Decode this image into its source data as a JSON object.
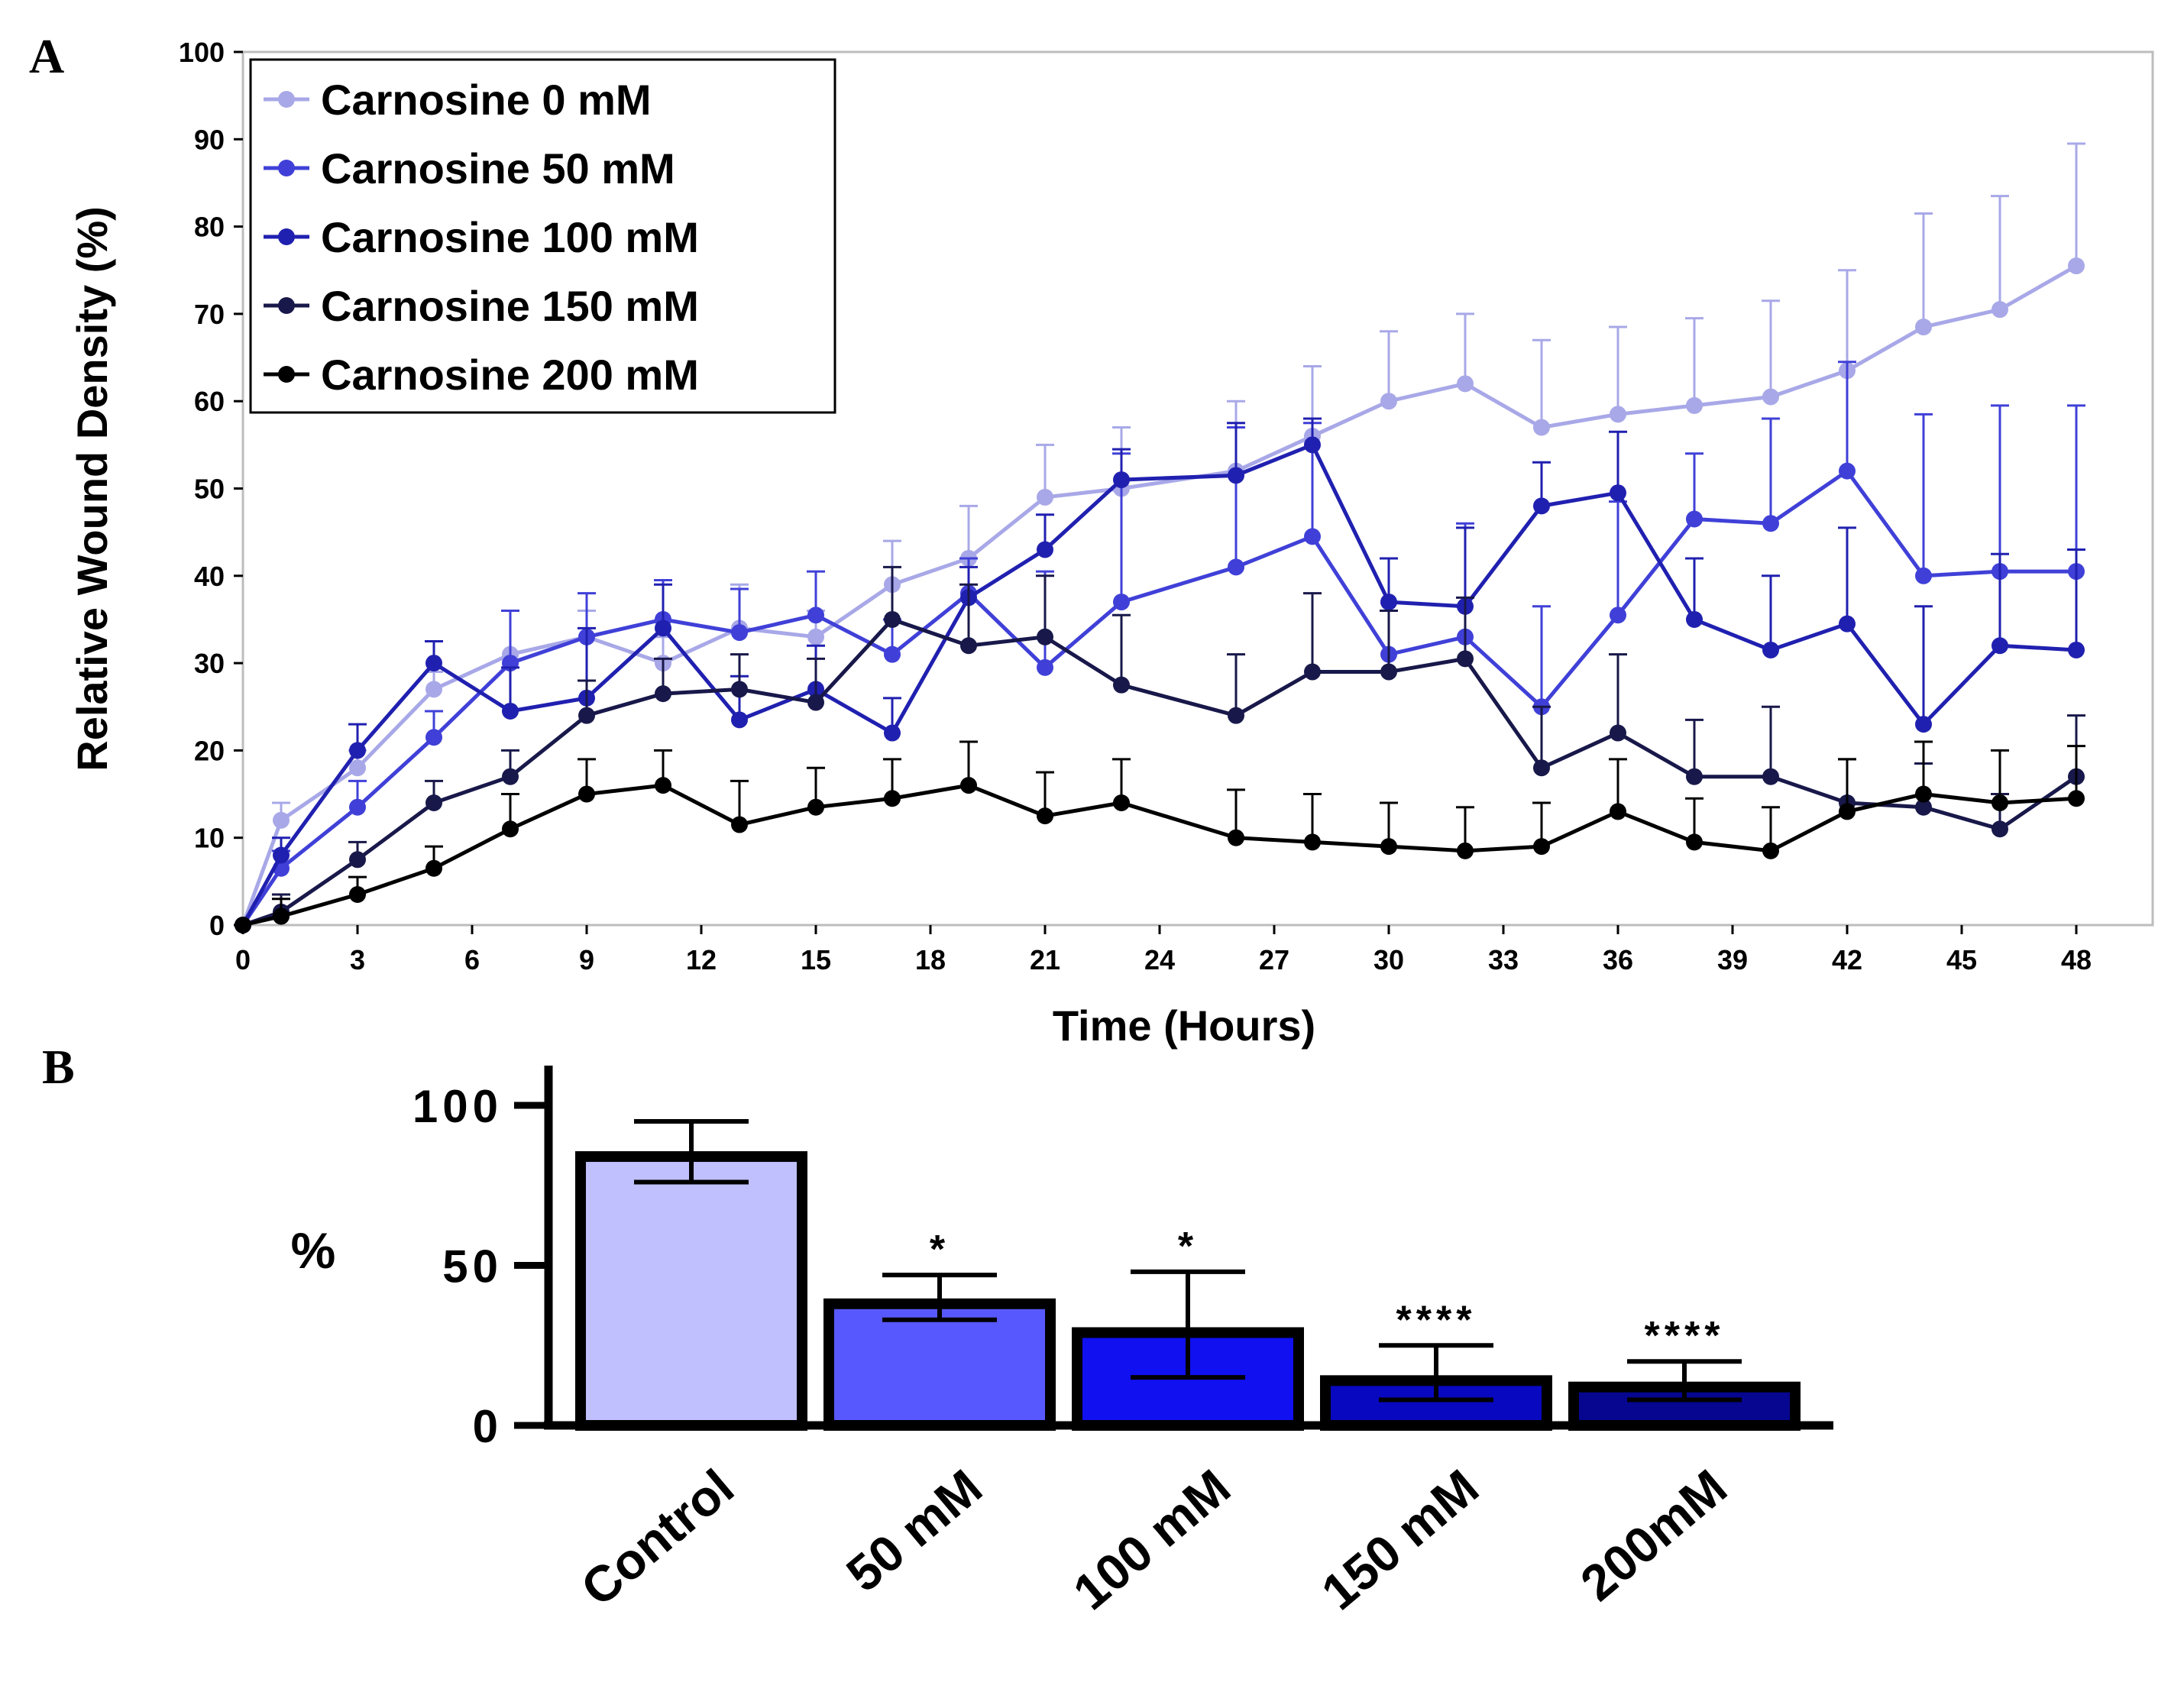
{
  "panel_a_label": "A",
  "panel_b_label": "B",
  "chart_data": [
    {
      "type": "line",
      "xlabel": "Time (Hours)",
      "ylabel": "Relative Wound Density (%)",
      "xlim": [
        0,
        50
      ],
      "ylim": [
        0,
        100
      ],
      "x_ticks": [
        "0",
        "3",
        "6",
        "9",
        "12",
        "15",
        "18",
        "21",
        "24",
        "27",
        "30",
        "33",
        "36",
        "39",
        "42",
        "45",
        "48"
      ],
      "y_ticks": [
        "0",
        "10",
        "20",
        "30",
        "40",
        "50",
        "60",
        "70",
        "80",
        "90",
        "100"
      ],
      "legend_position": "top-left",
      "x": [
        0,
        1,
        3,
        5,
        7,
        9,
        11,
        13,
        15,
        17,
        19,
        21,
        23,
        26,
        28,
        30,
        32,
        34,
        36,
        38,
        40,
        42,
        44,
        46,
        48
      ],
      "series": [
        {
          "name": "Carnosine 0 mM",
          "color": "#a8a8e8",
          "values": [
            0,
            12,
            18,
            27,
            31,
            33,
            30,
            34,
            33,
            39,
            42,
            49,
            50,
            52,
            56,
            60,
            62,
            57,
            58.5,
            59.5,
            60.5,
            63.5,
            68.5,
            70.5,
            75.5
          ],
          "errors": [
            0,
            2,
            2,
            2,
            5,
            3,
            3,
            5,
            3,
            5,
            6,
            6,
            7,
            8,
            8,
            8,
            8,
            10,
            10,
            10,
            11,
            11.5,
            13,
            13,
            14
          ]
        },
        {
          "name": "Carnosine 50 mM",
          "color": "#4040d8",
          "values": [
            0,
            6.5,
            13.5,
            21.5,
            30,
            33,
            35,
            33.5,
            35.5,
            31,
            38,
            29.5,
            37,
            41,
            44.5,
            31,
            33,
            25,
            35.5,
            46.5,
            46,
            52,
            40,
            40.5,
            40.5
          ],
          "errors": [
            0,
            2,
            3,
            3,
            6,
            5,
            4.5,
            5,
            5,
            4,
            4,
            11,
            17,
            16,
            13,
            11,
            13,
            11.5,
            13,
            7.5,
            12,
            12.5,
            18.5,
            19,
            19
          ]
        },
        {
          "name": "Carnosine 100 mM",
          "color": "#2020b0",
          "values": [
            0,
            8,
            20,
            30,
            24.5,
            26,
            34,
            23.5,
            27,
            22,
            37.5,
            43,
            51,
            51.5,
            55,
            37,
            36.5,
            48,
            49.5,
            35,
            31.5,
            34.5,
            23,
            32,
            31.5
          ],
          "errors": [
            0,
            2,
            3,
            2.5,
            5,
            8,
            5,
            5,
            5,
            4,
            3.5,
            4,
            3.5,
            6,
            3,
            5,
            9,
            5,
            7,
            7,
            8.5,
            11,
            13.5,
            10.5,
            11.5
          ]
        },
        {
          "name": "Carnosine 150 mM",
          "color": "#18184a",
          "values": [
            0,
            1.5,
            7.5,
            14,
            17,
            24,
            26.5,
            27,
            25.5,
            35,
            32,
            33,
            27.5,
            24,
            29,
            29,
            30.5,
            18,
            22,
            17,
            17,
            14,
            13.5,
            11,
            17
          ],
          "errors": [
            0,
            2,
            2,
            2.5,
            3,
            4,
            4,
            4,
            5,
            6,
            7,
            7,
            8,
            7,
            9,
            7,
            7,
            7,
            9,
            6.5,
            8,
            5,
            5,
            4,
            7
          ]
        },
        {
          "name": "Carnosine 200 mM",
          "color": "#000000",
          "values": [
            0,
            1,
            3.5,
            6.5,
            11,
            15,
            16,
            11.5,
            13.5,
            14.5,
            16,
            12.5,
            14,
            10,
            9.5,
            9,
            8.5,
            9,
            13,
            9.5,
            8.5,
            13,
            15,
            14,
            14.5
          ],
          "errors": [
            0,
            2,
            2,
            2.5,
            4,
            4,
            4,
            5,
            4.5,
            4.5,
            5,
            5,
            5,
            5.5,
            5.5,
            5,
            5,
            5,
            6,
            5,
            5,
            6,
            6,
            6,
            6
          ]
        }
      ]
    },
    {
      "type": "bar",
      "ylabel": "%",
      "ylim": [
        0,
        100
      ],
      "y_ticks": [
        "0",
        "50",
        "100"
      ],
      "categories": [
        "Control",
        "50 mM",
        "100 mM",
        "150 mM",
        "200mM"
      ],
      "values": [
        84,
        38,
        29,
        14,
        12
      ],
      "errors_upper": [
        95,
        47,
        48,
        25,
        20
      ],
      "errors_lower": [
        76,
        33,
        15,
        8,
        8
      ],
      "significance": [
        "",
        "*",
        "*",
        "****",
        "****"
      ],
      "colors": [
        "#c0c0ff",
        "#5858ff",
        "#1010f0",
        "#0808c0",
        "#060690"
      ]
    }
  ]
}
